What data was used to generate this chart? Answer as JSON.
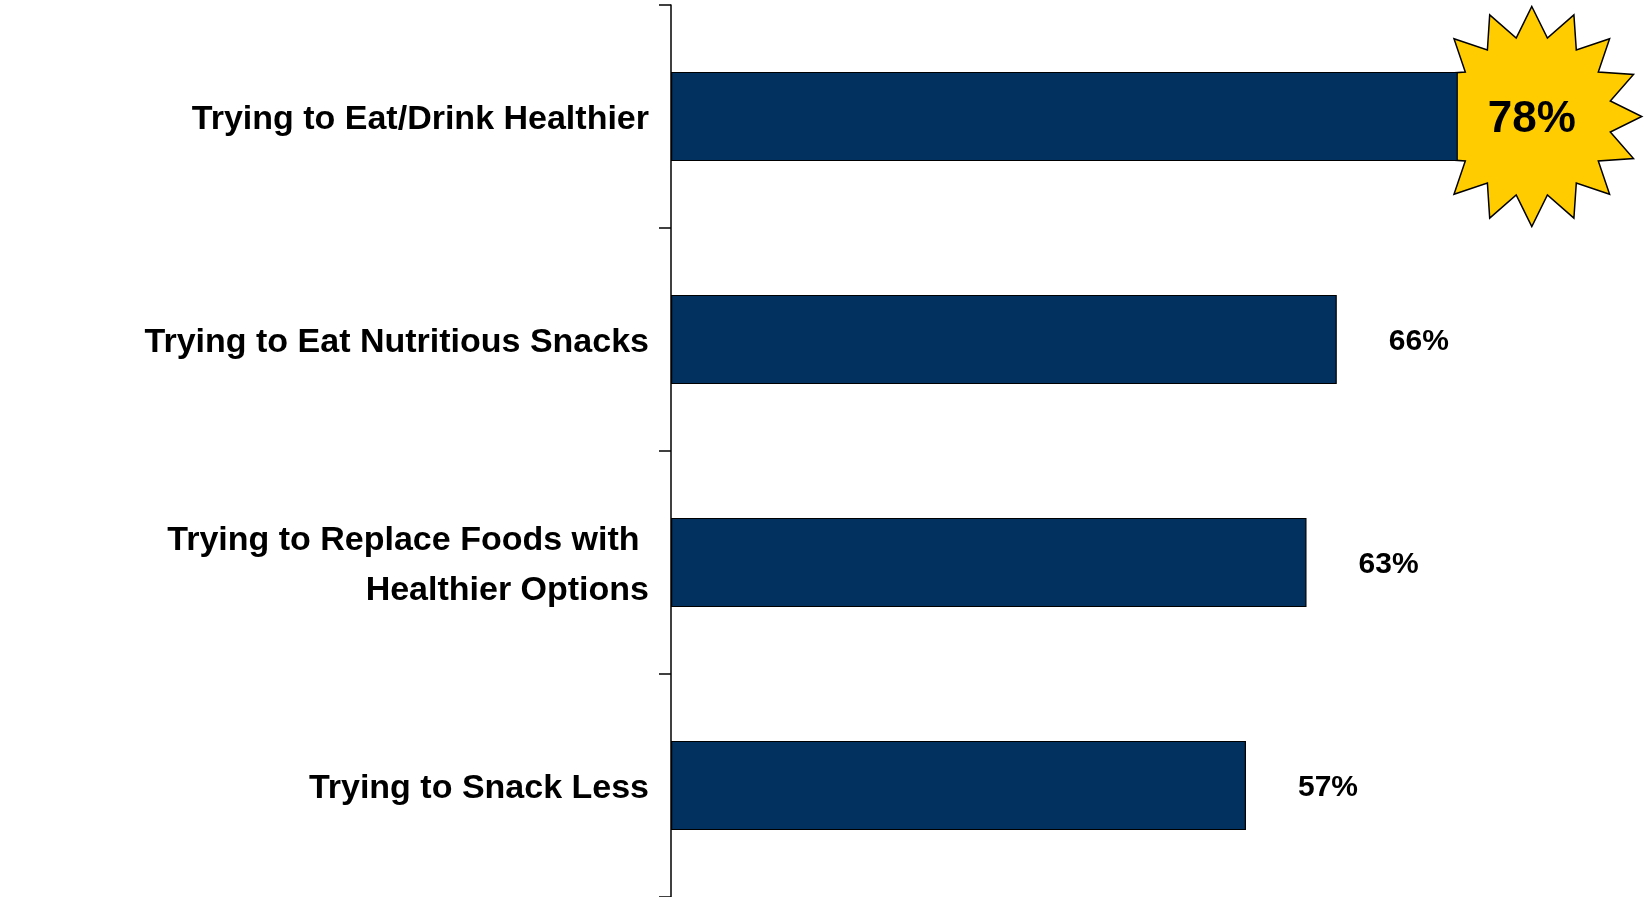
{
  "chart_data": {
    "type": "bar",
    "orientation": "horizontal",
    "categories": [
      "Trying to Eat/Drink Healthier",
      "Trying to Eat Nutritious Snacks",
      "Trying to Replace Foods with Healthier Options",
      "Trying to Snack Less"
    ],
    "values": [
      78,
      66,
      63,
      57
    ],
    "color": "#02305f",
    "value_labels": [
      "78%",
      "66%",
      "63%",
      "57%"
    ],
    "tick_labels": "y"
  }
}
